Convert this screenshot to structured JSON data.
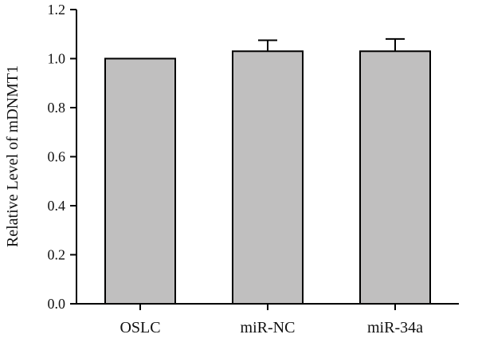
{
  "chart_data": {
    "type": "bar",
    "title": "",
    "xlabel": "",
    "ylabel": "Relative Level of mDNMT1",
    "categories": [
      "OSLC",
      "miR-NC",
      "miR-34a"
    ],
    "values": [
      1.0,
      1.03,
      1.03
    ],
    "error_upper": [
      0.0,
      0.045,
      0.05
    ],
    "ylim": [
      0.0,
      1.2
    ],
    "yticks": [
      0.0,
      0.2,
      0.4,
      0.6,
      0.8,
      1.0,
      1.2
    ],
    "ytick_labels": [
      "0.0",
      "0.2",
      "0.4",
      "0.6",
      "0.8",
      "1.0",
      "1.2"
    ],
    "grid": false,
    "legend": "none",
    "bar_color": "#c0bfbf",
    "bar_edge_color": "#000000"
  }
}
